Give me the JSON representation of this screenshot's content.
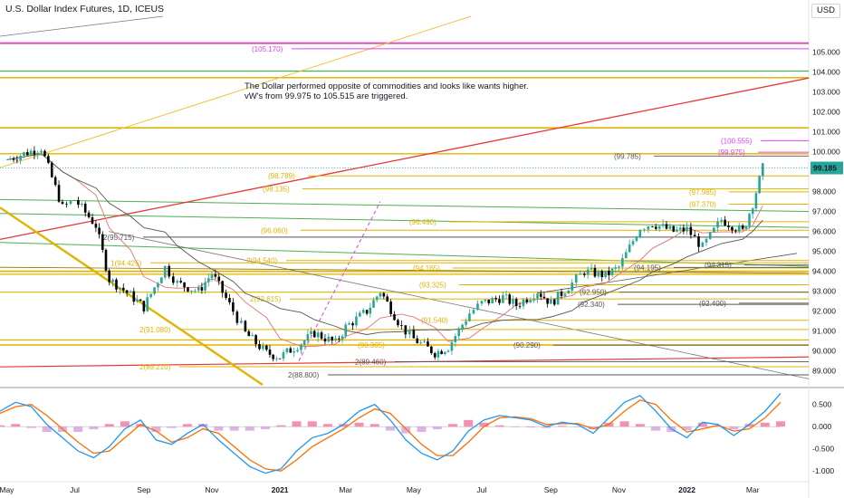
{
  "header": {
    "title": "U.S. Dollar Index Futures, 1D, ICEUS",
    "currency": "USD"
  },
  "annotation": {
    "line1": "The Dollar performed opposite of commodities and looks like wants higher.",
    "line2": "vW's from 99.975 to 105.515 are triggered."
  },
  "colors": {
    "candle_up": "#26a69a",
    "candle_down": "#000000",
    "yellow_levels": "#e0b400",
    "green_levels": "#4caf50",
    "red_trend": "#e53935",
    "magenta": "#e040fb",
    "price_tag": "#26a69a",
    "macd_line": "#2196f3",
    "signal_line": "#ff6d00"
  },
  "chart_data": [
    {
      "type": "candlestick",
      "title": "U.S. Dollar Index Futures, 1D, ICEUS",
      "x_tick_labels": [
        "May",
        "Jul",
        "Sep",
        "Nov",
        "2021",
        "Mar",
        "May",
        "Jul",
        "Sep",
        "Nov",
        "2022",
        "Mar"
      ],
      "y_tick_labels": [
        "89.000",
        "90.000",
        "91.000",
        "92.000",
        "93.000",
        "94.000",
        "95.000",
        "96.000",
        "97.000",
        "98.000",
        "99.000",
        "100.000",
        "101.000",
        "102.000",
        "103.000",
        "104.000",
        "105.000"
      ],
      "ylim": [
        88.3,
        106.8
      ],
      "last_price": "99.185",
      "close_path": [
        {
          "x": "2020-05",
          "y": 99.6
        },
        {
          "x": "2020-06",
          "y": 100.2
        },
        {
          "x": "2020-06-20",
          "y": 97.2
        },
        {
          "x": "2020-07",
          "y": 97.6
        },
        {
          "x": "2020-07-20",
          "y": 96.3
        },
        {
          "x": "2020-08",
          "y": 93.6
        },
        {
          "x": "2020-08-20",
          "y": 92.8
        },
        {
          "x": "2020-09",
          "y": 92.2
        },
        {
          "x": "2020-09-20",
          "y": 94.2
        },
        {
          "x": "2020-10",
          "y": 93.4
        },
        {
          "x": "2020-10-20",
          "y": 93.0
        },
        {
          "x": "2020-11",
          "y": 93.9
        },
        {
          "x": "2020-11-20",
          "y": 92.0
        },
        {
          "x": "2020-12",
          "y": 90.9
        },
        {
          "x": "2020-12-20",
          "y": 89.9
        },
        {
          "x": "2021-01",
          "y": 89.7
        },
        {
          "x": "2021-01-20",
          "y": 90.4
        },
        {
          "x": "2021-02",
          "y": 90.9
        },
        {
          "x": "2021-02-20",
          "y": 90.4
        },
        {
          "x": "2021-03",
          "y": 91.2
        },
        {
          "x": "2021-03-20",
          "y": 92.0
        },
        {
          "x": "2021-04",
          "y": 93.0
        },
        {
          "x": "2021-04-20",
          "y": 91.2
        },
        {
          "x": "2021-05",
          "y": 90.6
        },
        {
          "x": "2021-05-20",
          "y": 89.9
        },
        {
          "x": "2021-06",
          "y": 90.2
        },
        {
          "x": "2021-06-20",
          "y": 91.9
        },
        {
          "x": "2021-07",
          "y": 92.4
        },
        {
          "x": "2021-07-20",
          "y": 92.7
        },
        {
          "x": "2021-08",
          "y": 92.3
        },
        {
          "x": "2021-08-20",
          "y": 93.0
        },
        {
          "x": "2021-09",
          "y": 92.4
        },
        {
          "x": "2021-09-20",
          "y": 93.4
        },
        {
          "x": "2021-10",
          "y": 94.0
        },
        {
          "x": "2021-10-20",
          "y": 93.8
        },
        {
          "x": "2021-11",
          "y": 94.2
        },
        {
          "x": "2021-11-20",
          "y": 96.2
        },
        {
          "x": "2021-12",
          "y": 96.4
        },
        {
          "x": "2021-12-20",
          "y": 96.0
        },
        {
          "x": "2022-01",
          "y": 96.1
        },
        {
          "x": "2022-01-15",
          "y": 95.2
        },
        {
          "x": "2022-02",
          "y": 96.6
        },
        {
          "x": "2022-02-20",
          "y": 96.0
        },
        {
          "x": "2022-03",
          "y": 97.4
        },
        {
          "x": "2022-03-10",
          "y": 99.185
        }
      ],
      "horizontal_levels": [
        {
          "label": "(105.170)",
          "y": 105.17,
          "color": "magenta"
        },
        {
          "label": "(100.555)",
          "y": 100.555,
          "color": "magenta"
        },
        {
          "label": "(99.975)",
          "y": 99.975,
          "color": "magenta"
        },
        {
          "label": "(99.785)",
          "y": 99.785,
          "color": "gray"
        },
        {
          "label": "(98.789)",
          "y": 98.789,
          "color": "yellow"
        },
        {
          "label": "(98.135)",
          "y": 98.135,
          "color": "yellow"
        },
        {
          "label": "(97.985)",
          "y": 97.985,
          "color": "yellow"
        },
        {
          "label": "(97.370)",
          "y": 97.37,
          "color": "yellow"
        },
        {
          "label": "(96.490)",
          "y": 96.49,
          "color": "yellow"
        },
        {
          "label": "(96.060)",
          "y": 96.06,
          "color": "yellow"
        },
        {
          "label": "2(95.715)",
          "y": 95.715,
          "color": "gray"
        },
        {
          "label": "2(94.540)",
          "y": 94.54,
          "color": "yellow"
        },
        {
          "label": "1(94.425)",
          "y": 94.425,
          "color": "yellow"
        },
        {
          "label": "(94.315)",
          "y": 94.315,
          "color": "gray"
        },
        {
          "label": "(94.165)",
          "y": 94.165,
          "color": "yellow"
        },
        {
          "label": "(94.195)",
          "y": 94.195,
          "color": "gray"
        },
        {
          "label": "(93.325)",
          "y": 93.325,
          "color": "yellow"
        },
        {
          "label": "2(92.615)",
          "y": 92.615,
          "color": "yellow"
        },
        {
          "label": "(92.950)",
          "y": 92.95,
          "color": "gray"
        },
        {
          "label": "(92.400)",
          "y": 92.4,
          "color": "gray"
        },
        {
          "label": "(92.340)",
          "y": 92.34,
          "color": "gray"
        },
        {
          "label": "(91.540)",
          "y": 91.54,
          "color": "yellow"
        },
        {
          "label": "2(91.080)",
          "y": 91.08,
          "color": "yellow"
        },
        {
          "label": "(90.305)",
          "y": 90.305,
          "color": "yellow"
        },
        {
          "label": "(90.290)",
          "y": 90.29,
          "color": "gray"
        },
        {
          "label": "2(89.460)",
          "y": 89.46,
          "color": "gray"
        },
        {
          "label": "2(89.210)",
          "y": 89.21,
          "color": "yellow"
        },
        {
          "label": "2(88.800)",
          "y": 88.8,
          "color": "gray"
        }
      ]
    },
    {
      "type": "line",
      "title": "",
      "y_tick_labels": [
        "0.500",
        "0.000",
        "-0.500",
        "-1.000"
      ],
      "ylim": [
        -1.2,
        0.8
      ],
      "series": [
        {
          "values": [
            0.35,
            0.55,
            0.45,
            0.05,
            -0.25,
            -0.55,
            -0.7,
            -0.45,
            -0.05,
            0.15,
            -0.3,
            -0.4,
            -0.15,
            0.05,
            -0.3,
            -0.6,
            -0.9,
            -1.05,
            -0.95,
            -0.55,
            -0.25,
            -0.15,
            0.05,
            0.35,
            0.5,
            0.15,
            -0.3,
            -0.6,
            -0.75,
            -0.55,
            -0.1,
            0.15,
            0.25,
            0.2,
            0.15,
            0.0,
            0.1,
            0.05,
            -0.15,
            0.2,
            0.55,
            0.7,
            0.35,
            -0.05,
            -0.25,
            0.1,
            0.05,
            -0.2,
            0.05,
            0.35,
            0.75
          ]
        },
        {
          "values": [
            0.3,
            0.45,
            0.5,
            0.25,
            -0.05,
            -0.35,
            -0.6,
            -0.55,
            -0.25,
            0.05,
            -0.1,
            -0.35,
            -0.25,
            -0.05,
            -0.15,
            -0.45,
            -0.75,
            -0.95,
            -1.0,
            -0.75,
            -0.45,
            -0.25,
            -0.05,
            0.2,
            0.4,
            0.3,
            -0.05,
            -0.4,
            -0.65,
            -0.65,
            -0.35,
            0.0,
            0.2,
            0.22,
            0.18,
            0.05,
            0.07,
            0.07,
            -0.05,
            0.05,
            0.35,
            0.6,
            0.5,
            0.15,
            -0.12,
            -0.05,
            0.03,
            -0.1,
            -0.05,
            0.2,
            0.55
          ]
        }
      ]
    }
  ]
}
